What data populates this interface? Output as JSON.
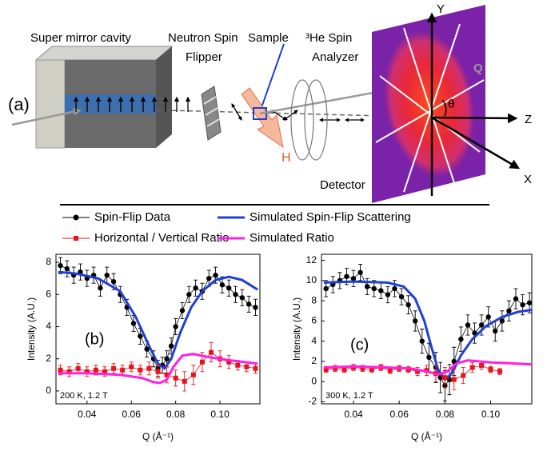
{
  "diagram": {
    "panel": "(a)",
    "cavity": "Super mirror cavity",
    "flipper": [
      "Neutron Spin",
      "Flipper"
    ],
    "sample": "Sample",
    "analyzer": [
      "³He Spin",
      "Analyzer"
    ],
    "field": "H",
    "detector": "Detector",
    "axes": {
      "y": "Y",
      "z": "Z",
      "x": "X",
      "q": "Q",
      "theta": "θ"
    }
  },
  "chart_data": [
    {
      "type": "line",
      "panel_label": "(b)",
      "annotation": "200 K, 1.2 T",
      "x_label": "Q (Å⁻¹)",
      "y_label": "Intensity (A.U.)",
      "xlim": [
        0.026,
        0.118
      ],
      "xticks": [
        0.04,
        0.06,
        0.08,
        {
          "value": 0.1,
          "label": "0.10"
        }
      ],
      "ylim": [
        -0.8,
        8.5
      ],
      "yticks": [
        0,
        2,
        4,
        6,
        8
      ],
      "series": [
        {
          "name": "Spin-Flip Data",
          "color": "#000000",
          "style": "markers",
          "marker": "circle",
          "x": [
            0.028,
            0.031,
            0.034,
            0.037,
            0.04,
            0.043,
            0.046,
            0.049,
            0.052,
            0.055,
            0.058,
            0.061,
            0.064,
            0.067,
            0.07,
            0.072,
            0.074,
            0.076,
            0.078,
            0.08,
            0.083,
            0.086,
            0.089,
            0.092,
            0.095,
            0.098,
            0.101,
            0.104,
            0.107,
            0.11,
            0.113,
            0.116
          ],
          "values": [
            7.8,
            7.6,
            7.2,
            7.4,
            7.0,
            7.2,
            6.4,
            7.2,
            6.8,
            6.0,
            5.2,
            4.2,
            3.4,
            2.6,
            2.0,
            1.4,
            1.6,
            2.0,
            2.8,
            4.0,
            5.0,
            6.0,
            6.4,
            6.2,
            7.0,
            7.2,
            6.6,
            6.4,
            6.0,
            5.8,
            5.4,
            5.2
          ],
          "errors": [
            0.5,
            0.5,
            0.5,
            0.5,
            0.5,
            0.5,
            0.5,
            0.5,
            0.5,
            0.5,
            0.5,
            0.5,
            0.5,
            0.5,
            0.5,
            0.5,
            0.5,
            0.5,
            0.5,
            0.5,
            0.5,
            0.5,
            0.5,
            0.5,
            0.5,
            0.5,
            0.5,
            0.5,
            0.5,
            0.5,
            0.5,
            0.5
          ]
        },
        {
          "name": "Simulated Spin-Flip Scattering",
          "color": "#1f3fd6",
          "style": "line",
          "x": [
            0.027,
            0.035,
            0.045,
            0.055,
            0.062,
            0.068,
            0.072,
            0.075,
            0.078,
            0.082,
            0.087,
            0.092,
            0.098,
            0.104,
            0.11,
            0.117
          ],
          "values": [
            7.4,
            7.3,
            7.0,
            6.2,
            4.6,
            2.8,
            1.7,
            1.4,
            2.0,
            3.6,
            5.2,
            6.2,
            6.9,
            7.1,
            6.9,
            6.3
          ]
        },
        {
          "name": "Horizontal / Vertical Ratio",
          "color": "#e8141b",
          "style": "markers",
          "marker": "square",
          "x": [
            0.028,
            0.032,
            0.036,
            0.04,
            0.044,
            0.048,
            0.052,
            0.056,
            0.06,
            0.064,
            0.068,
            0.072,
            0.076,
            0.08,
            0.084,
            0.088,
            0.092,
            0.096,
            0.1,
            0.104,
            0.108,
            0.112,
            0.116
          ],
          "values": [
            1.3,
            1.2,
            1.4,
            1.2,
            1.3,
            1.2,
            1.4,
            1.3,
            1.5,
            1.3,
            1.4,
            1.2,
            1.0,
            0.8,
            0.6,
            1.0,
            1.8,
            2.4,
            2.0,
            1.8,
            1.6,
            1.5,
            1.4
          ],
          "errors": [
            0.3,
            0.3,
            0.3,
            0.3,
            0.3,
            0.3,
            0.3,
            0.3,
            0.3,
            0.3,
            0.4,
            0.4,
            0.5,
            0.5,
            0.6,
            0.6,
            0.6,
            0.6,
            0.5,
            0.4,
            0.3,
            0.3,
            0.3
          ]
        },
        {
          "name": "Simulated Ratio",
          "color": "#ff20e0",
          "style": "line",
          "x": [
            0.027,
            0.04,
            0.055,
            0.065,
            0.07,
            0.073,
            0.076,
            0.079,
            0.083,
            0.088,
            0.095,
            0.105,
            0.117
          ],
          "values": [
            1.1,
            1.1,
            1.0,
            0.8,
            0.55,
            0.5,
            0.7,
            1.5,
            2.2,
            2.3,
            2.1,
            1.9,
            1.7
          ]
        }
      ]
    },
    {
      "type": "line",
      "panel_label": "(c)",
      "annotation": "300 K, 1.2 T",
      "x_label": "Q (Å⁻¹)",
      "y_label": "Intensity (A.U.)",
      "xlim": [
        0.026,
        0.118
      ],
      "xticks": [
        0.04,
        0.06,
        0.08,
        {
          "value": 0.1,
          "label": "0.10"
        }
      ],
      "ylim": [
        -2.2,
        12.6
      ],
      "yticks": [
        -2,
        0,
        2,
        4,
        6,
        8,
        10,
        12
      ],
      "series": [
        {
          "name": "Spin-Flip Data",
          "color": "#000000",
          "style": "markers",
          "marker": "circle",
          "x": [
            0.028,
            0.031,
            0.034,
            0.037,
            0.04,
            0.043,
            0.046,
            0.049,
            0.052,
            0.055,
            0.058,
            0.061,
            0.064,
            0.067,
            0.07,
            0.073,
            0.076,
            0.078,
            0.08,
            0.082,
            0.084,
            0.087,
            0.09,
            0.093,
            0.096,
            0.099,
            0.102,
            0.105,
            0.108,
            0.111,
            0.114,
            0.117
          ],
          "values": [
            9.2,
            9.6,
            10.0,
            10.4,
            10.2,
            10.8,
            9.4,
            9.2,
            9.0,
            8.6,
            9.2,
            8.4,
            7.6,
            6.0,
            4.0,
            2.4,
            1.4,
            0.4,
            -0.4,
            0.2,
            2.0,
            4.2,
            5.6,
            4.8,
            5.6,
            6.4,
            5.0,
            6.0,
            7.0,
            8.2,
            7.6,
            7.8
          ],
          "errors": [
            0.8,
            0.8,
            0.8,
            0.8,
            0.8,
            0.8,
            0.8,
            0.8,
            0.8,
            0.8,
            0.8,
            0.8,
            0.9,
            1.0,
            1.2,
            1.4,
            1.5,
            1.5,
            1.5,
            1.5,
            1.4,
            1.2,
            1.0,
            1.0,
            1.0,
            1.0,
            1.0,
            1.0,
            1.0,
            1.0,
            1.0,
            1.0
          ]
        },
        {
          "name": "Simulated Spin-Flip Scattering",
          "color": "#1f3fd6",
          "style": "line",
          "x": [
            0.027,
            0.04,
            0.055,
            0.062,
            0.067,
            0.071,
            0.074,
            0.077,
            0.08,
            0.083,
            0.087,
            0.092,
            0.098,
            0.105,
            0.112,
            0.118
          ],
          "values": [
            9.8,
            9.9,
            9.8,
            9.4,
            8.2,
            6.0,
            3.5,
            1.2,
            0.2,
            0.8,
            2.6,
            4.2,
            5.5,
            6.4,
            6.9,
            7.1
          ]
        },
        {
          "name": "Horizontal / Vertical Ratio",
          "color": "#e8141b",
          "style": "markers",
          "marker": "square",
          "x": [
            0.028,
            0.032,
            0.036,
            0.04,
            0.044,
            0.048,
            0.052,
            0.056,
            0.06,
            0.064,
            0.068,
            0.072,
            0.076,
            0.08,
            0.084,
            0.088,
            0.092,
            0.096,
            0.1,
            0.104
          ],
          "values": [
            1.2,
            1.3,
            1.2,
            1.4,
            1.3,
            1.2,
            1.4,
            1.1,
            1.3,
            1.2,
            1.0,
            1.1,
            0.8,
            0.4,
            0.2,
            0.6,
            1.4,
            1.6,
            1.2,
            1.0
          ],
          "errors": [
            0.3,
            0.3,
            0.3,
            0.3,
            0.3,
            0.3,
            0.3,
            0.3,
            0.3,
            0.3,
            0.4,
            0.5,
            0.8,
            1.0,
            1.0,
            0.8,
            0.5,
            0.4,
            0.3,
            0.3
          ]
        },
        {
          "name": "Simulated Ratio",
          "color": "#ff20e0",
          "style": "line",
          "x": [
            0.027,
            0.04,
            0.055,
            0.065,
            0.072,
            0.077,
            0.081,
            0.085,
            0.09,
            0.1,
            0.11,
            0.118
          ],
          "values": [
            1.4,
            1.5,
            1.4,
            1.3,
            1.0,
            0.7,
            1.0,
            1.8,
            2.1,
            1.9,
            1.8,
            1.7
          ]
        }
      ]
    }
  ]
}
